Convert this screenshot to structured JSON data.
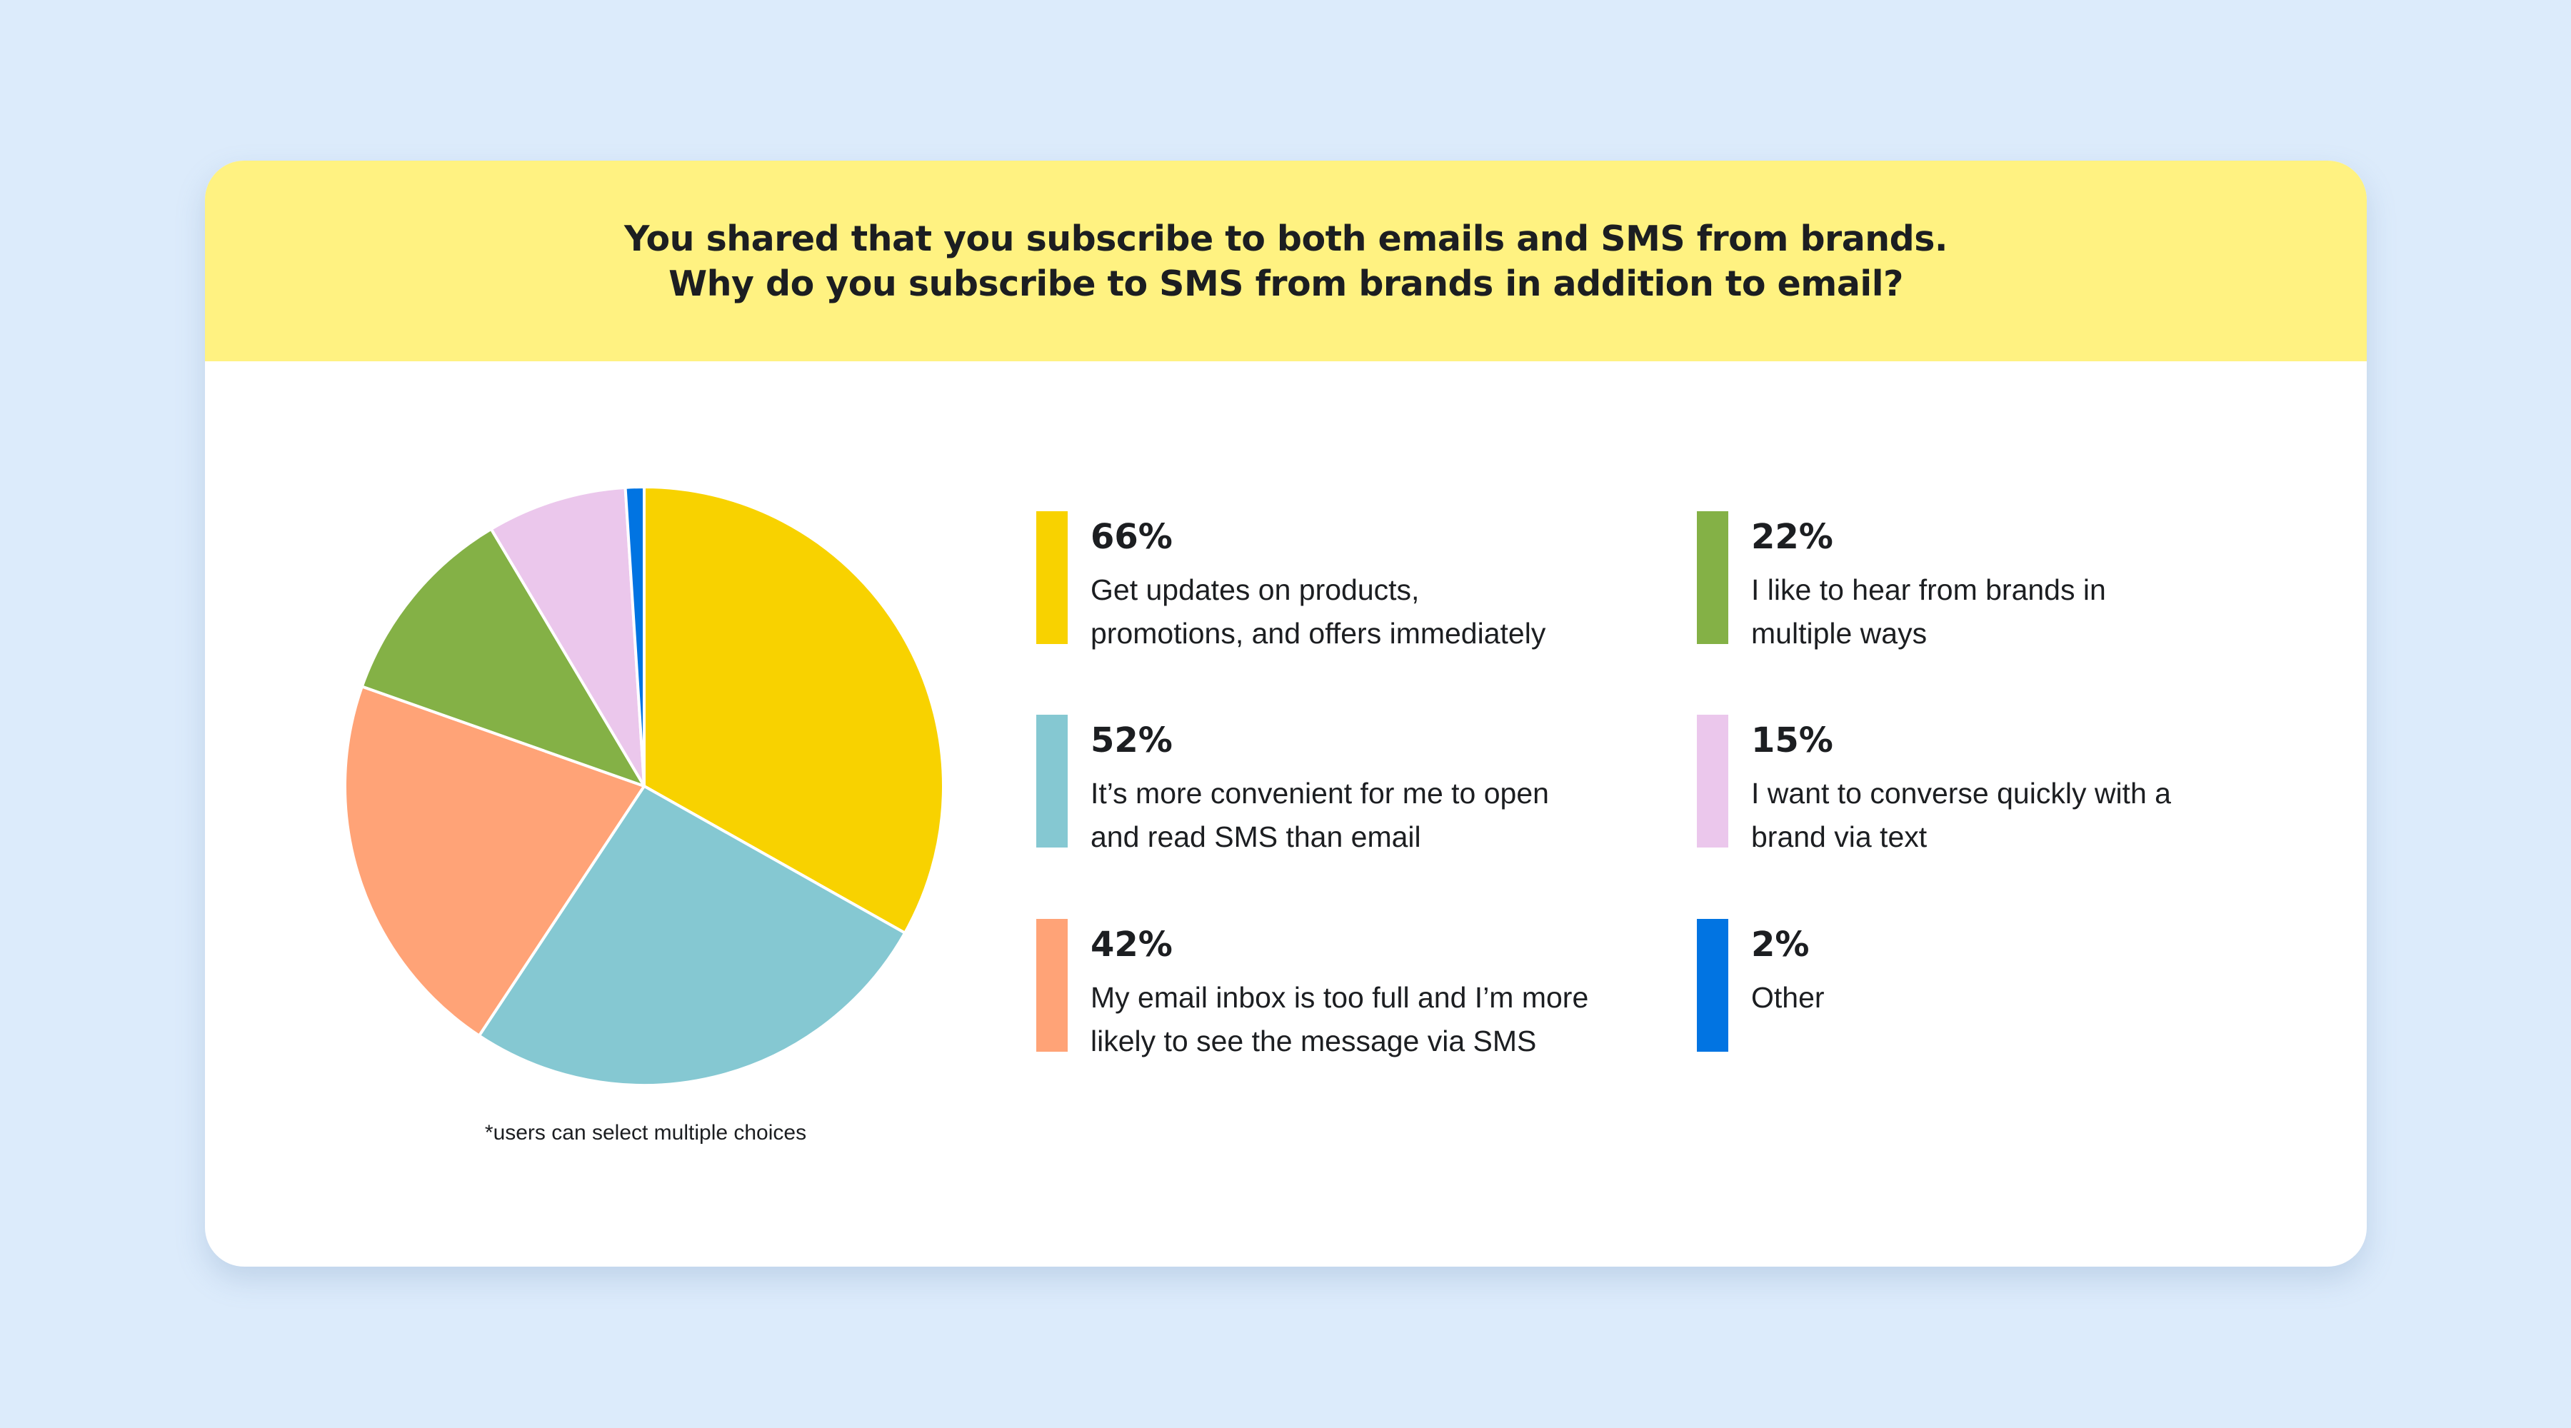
{
  "background_color": "#DCEBFB",
  "header": {
    "background_color": "#FFF281",
    "title_lines": [
      "You shared that you subscribe to both emails and SMS from brands.",
      "Why do you subscribe to SMS from brands in addition to email?"
    ]
  },
  "footnote": "*users can select multiple choices",
  "legend": [
    {
      "percent": "66%",
      "lines": [
        "Get updates on products,",
        "promotions, and offers immediately"
      ],
      "color": "#F8D200"
    },
    {
      "percent": "52%",
      "lines": [
        "It’s more convenient for me to open",
        "and read SMS than email"
      ],
      "color": "#85C8D2"
    },
    {
      "percent": "42%",
      "lines": [
        "My email inbox is too full and I’m more",
        "likely to see the message via SMS"
      ],
      "color": "#FFA377"
    },
    {
      "percent": "22%",
      "lines": [
        "I like to hear from brands in",
        "multiple ways"
      ],
      "color": "#84B146"
    },
    {
      "percent": "15%",
      "lines": [
        "I want to converse quickly with a",
        "brand via text"
      ],
      "color": "#EBC7EC"
    },
    {
      "percent": "2%",
      "lines": [
        "Other"
      ],
      "color": "#0174E2"
    }
  ],
  "chart_data": {
    "type": "pie",
    "title": "You shared that you subscribe to both emails and SMS from brands. Why do you subscribe to SMS from brands in addition to email?",
    "note": "*users can select multiple choices",
    "categories": [
      "Get updates on products, promotions, and offers immediately",
      "It’s more convenient for me to open and read SMS than email",
      "My email inbox is too full and I’m more likely to see the message via SMS",
      "I like to hear from brands in multiple ways",
      "I want to converse quickly with a brand via text",
      "Other"
    ],
    "values": [
      66,
      52,
      42,
      22,
      15,
      2
    ],
    "unit": "%",
    "colors": [
      "#F8D200",
      "#85C8D2",
      "#FFA377",
      "#84B146",
      "#EBC7EC",
      "#0174E2"
    ],
    "start_angle_deg": 0,
    "direction": "clockwise",
    "legend_position": "right"
  }
}
